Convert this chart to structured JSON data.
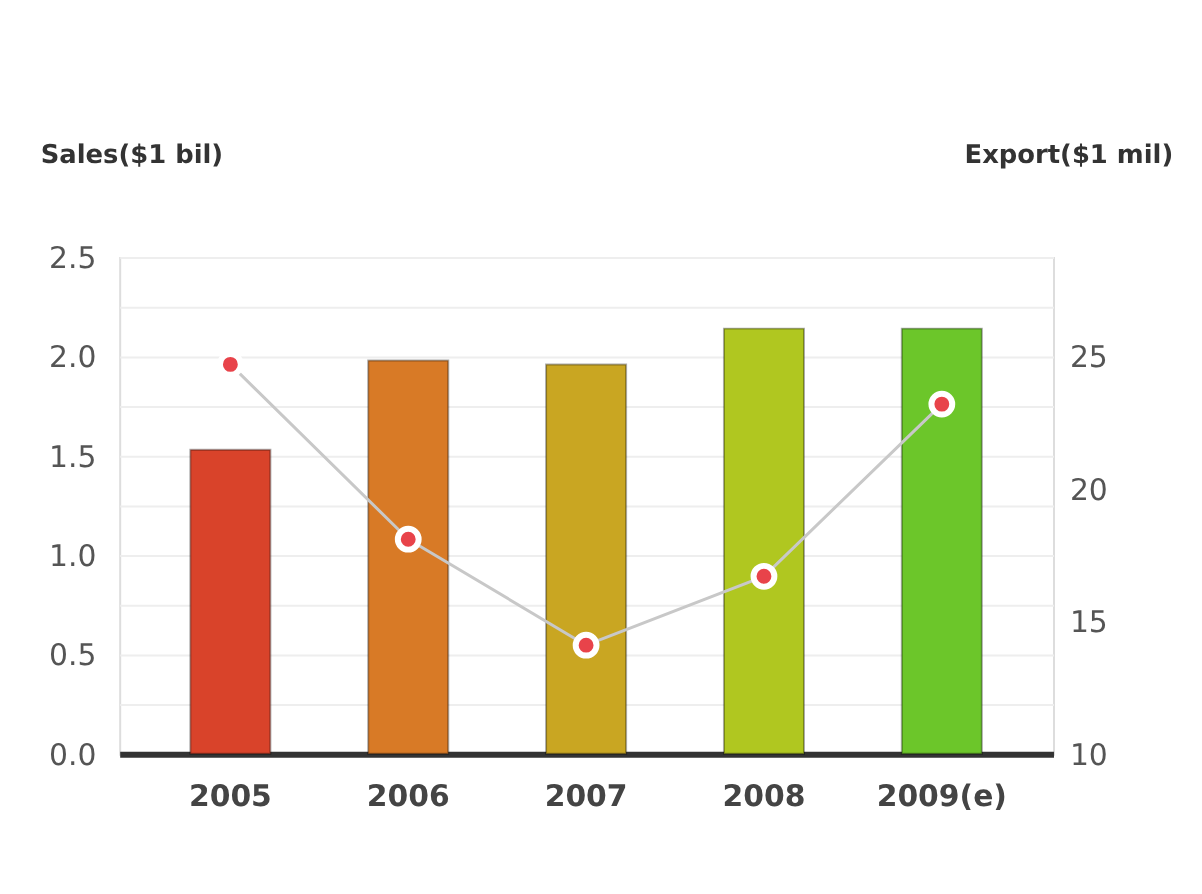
{
  "chart_data": {
    "type": "bar",
    "ylabel": "Sales($1 bil)",
    "y2label": "Export($1 mil)",
    "categories": [
      "2005",
      "2006",
      "2007",
      "2008",
      "2009(e)"
    ],
    "series": [
      {
        "colors": [
          "#d9432a",
          "#d87a26",
          "#c9a622",
          "#b0c720",
          "#6cc62a"
        ],
        "values": [
          1.53,
          1.98,
          1.96,
          2.14,
          2.14
        ]
      },
      {
        "type": "line",
        "axis": "y2",
        "color": "#e8434a",
        "values": [
          24.7,
          18.1,
          14.1,
          16.7,
          23.2
        ]
      }
    ],
    "ylim": [
      0,
      2.5
    ],
    "yticks": [
      {
        "value": 0,
        "label": "0.0"
      },
      {
        "value": 0.25,
        "label": null
      },
      0.5,
      {
        "value": 0.75,
        "label": null
      },
      {
        "value": 1,
        "label": "1.0"
      },
      {
        "value": 1.25,
        "label": null
      },
      1.5,
      {
        "value": 1.75,
        "label": null
      },
      {
        "value": 2,
        "label": "2.0"
      },
      {
        "value": 2.25,
        "label": null
      },
      2.5
    ],
    "y2lim": [
      10,
      28.75
    ],
    "y2ticks": [
      10,
      15,
      20,
      25
    ],
    "grid": "y",
    "marker": "circle"
  }
}
